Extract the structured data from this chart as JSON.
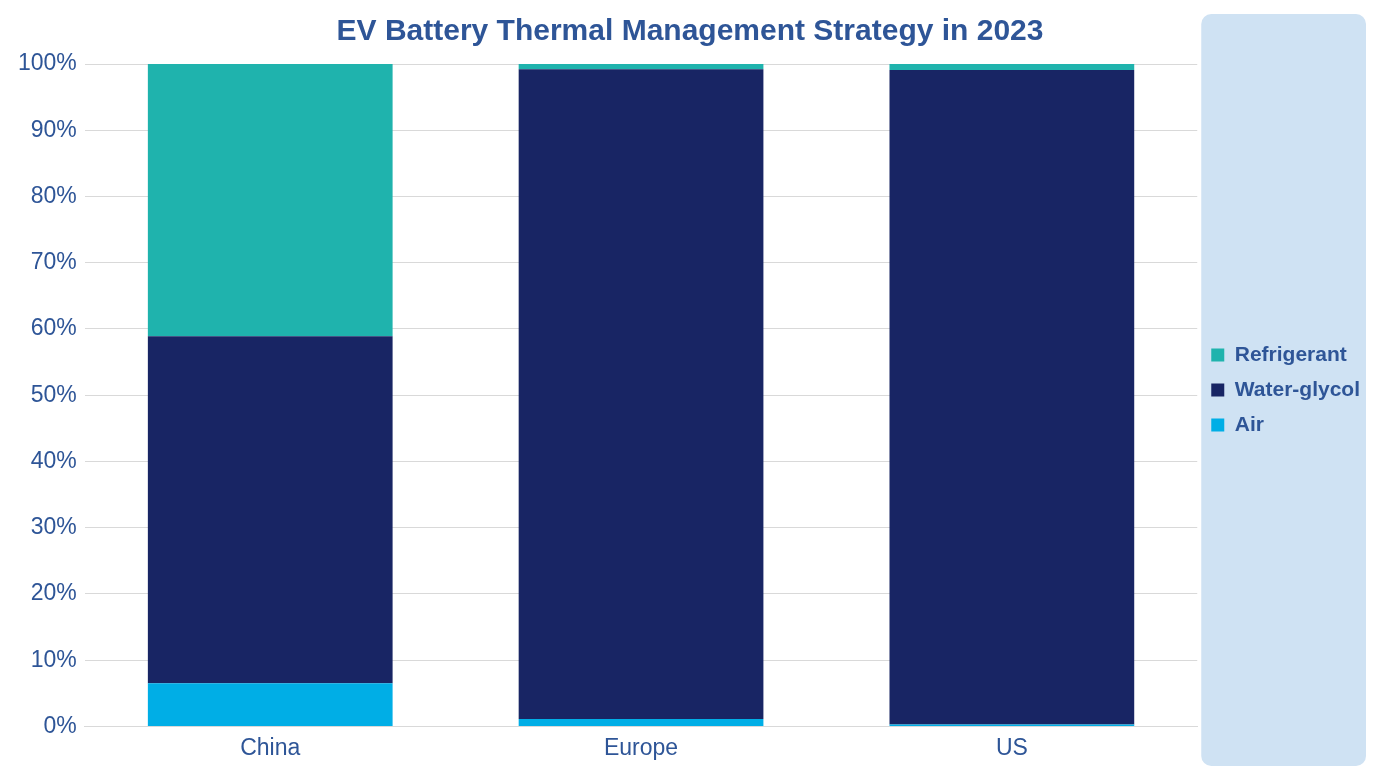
{
  "chart_data": {
    "type": "bar",
    "title": "EV Battery Thermal Management Strategy in 2023",
    "categories": [
      "China",
      "Europe",
      "US"
    ],
    "stacked": true,
    "series": [
      {
        "name": "Air",
        "color": "#00aee6",
        "values": [
          6.5,
          1.1,
          0.3
        ]
      },
      {
        "name": "Water-glycol",
        "color": "#182564",
        "values": [
          52.4,
          98.1,
          98.8
        ]
      },
      {
        "name": "Refrigerant",
        "color": "#1fb3ad",
        "values": [
          41.1,
          0.8,
          0.9
        ]
      }
    ],
    "ylim": [
      0,
      100
    ],
    "yticks": [
      {
        "value": 0,
        "label": "0%"
      },
      {
        "value": 10,
        "label": "10%"
      },
      {
        "value": 20,
        "label": "20%"
      },
      {
        "value": 30,
        "label": "30%"
      },
      {
        "value": 40,
        "label": "40%"
      },
      {
        "value": 50,
        "label": "50%"
      },
      {
        "value": 60,
        "label": "60%"
      },
      {
        "value": 70,
        "label": "70%"
      },
      {
        "value": 80,
        "label": "80%"
      },
      {
        "value": 90,
        "label": "90%"
      },
      {
        "value": 100,
        "label": "100%"
      }
    ],
    "grid": "y",
    "legend": "right"
  }
}
